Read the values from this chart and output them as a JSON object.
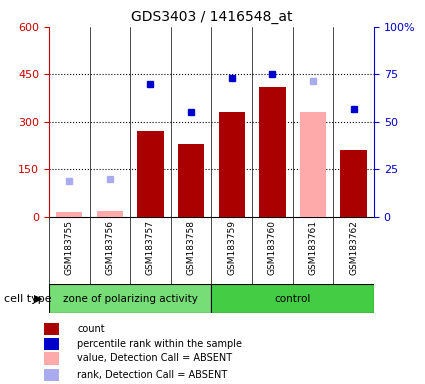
{
  "title": "GDS3403 / 1416548_at",
  "samples": [
    "GSM183755",
    "GSM183756",
    "GSM183757",
    "GSM183758",
    "GSM183759",
    "GSM183760",
    "GSM183761",
    "GSM183762"
  ],
  "groups": [
    "zone of polarizing activity",
    "zone of polarizing activity",
    "zone of polarizing activity",
    "zone of polarizing activity",
    "control",
    "control",
    "control",
    "control"
  ],
  "count_values": [
    null,
    null,
    270,
    230,
    330,
    410,
    null,
    210
  ],
  "count_absent_values": [
    15,
    18,
    null,
    null,
    null,
    null,
    330,
    null
  ],
  "percentile_values": [
    null,
    null,
    420,
    330,
    440,
    450,
    null,
    340
  ],
  "percentile_absent_values": [
    115,
    120,
    null,
    null,
    null,
    null,
    430,
    null
  ],
  "bar_color": "#AA0000",
  "bar_absent_color": "#FFAAAA",
  "dot_color": "#0000CC",
  "dot_absent_color": "#AAAAEE",
  "left_ylim": [
    0,
    600
  ],
  "left_yticks": [
    0,
    150,
    300,
    450,
    600
  ],
  "left_ylabel_color": "#CC0000",
  "right_yticks": [
    0,
    25,
    50,
    75,
    100
  ],
  "right_ylabel_color": "#0000CC",
  "bg_color": "#FFFFFF",
  "plot_bg": "#FFFFFF",
  "tick_area_color": "#CCCCCC",
  "group_colors": [
    "#77DD77",
    "#44CC44"
  ],
  "cell_type_label": "cell type",
  "legend_items": [
    {
      "color": "#AA0000",
      "label": "count"
    },
    {
      "color": "#0000CC",
      "label": "percentile rank within the sample"
    },
    {
      "color": "#FFAAAA",
      "label": "value, Detection Call = ABSENT"
    },
    {
      "color": "#AAAAEE",
      "label": "rank, Detection Call = ABSENT"
    }
  ]
}
